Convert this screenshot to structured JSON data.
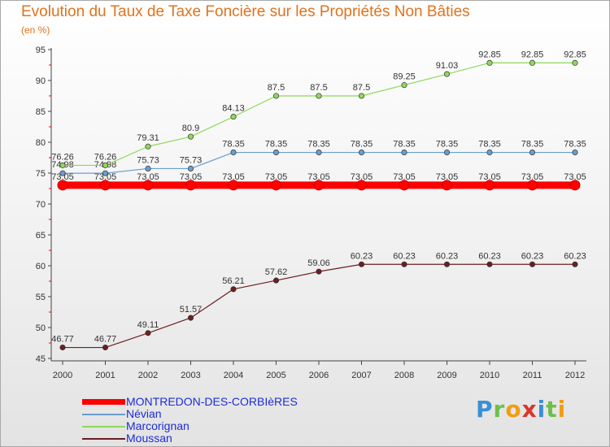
{
  "chart_data": {
    "type": "line",
    "title": "Evolution du Taux de Taxe Foncière sur les Propriétés Non Bâties",
    "ylabel": "(en %)",
    "xlabel": "",
    "ylim": [
      45,
      95
    ],
    "yticks": [
      45,
      50,
      55,
      60,
      65,
      70,
      75,
      80,
      85,
      90,
      95
    ],
    "categories": [
      "2000",
      "2001",
      "2002",
      "2003",
      "2004",
      "2005",
      "2006",
      "2007",
      "2008",
      "2009",
      "2010",
      "2011",
      "2012"
    ],
    "series": [
      {
        "name": "MONTREDON-DES-CORBIèRES",
        "color": "#ff0000",
        "values": [
          73.05,
          73.05,
          73.05,
          73.05,
          73.05,
          73.05,
          73.05,
          73.05,
          73.05,
          73.05,
          73.05,
          73.05,
          73.05
        ],
        "labels": [
          "73.05",
          "73.05",
          "73.05",
          "73.05",
          "73.05",
          "73.05",
          "73.05",
          "73.05",
          "73.05",
          "73.05",
          "73.05",
          "73.05",
          "73.05"
        ]
      },
      {
        "name": "Névian",
        "color": "#6a9ecf",
        "values": [
          74.98,
          74.98,
          75.73,
          75.73,
          78.35,
          78.35,
          78.35,
          78.35,
          78.35,
          78.35,
          78.35,
          78.35,
          78.35
        ],
        "labels": [
          "74.98",
          "74.98",
          "75.73",
          "75.73",
          "78.35",
          "78.35",
          "78.35",
          "78.35",
          "78.35",
          "78.35",
          "78.35",
          "78.35",
          "78.35"
        ]
      },
      {
        "name": "Marcorignan",
        "color": "#8fd85a",
        "values": [
          76.26,
          76.26,
          79.31,
          80.9,
          84.13,
          87.5,
          87.5,
          87.5,
          89.25,
          91.03,
          92.85,
          92.85,
          92.85
        ],
        "labels": [
          "76.26",
          "76.26",
          "79.31",
          "80.9",
          "84.13",
          "87.5",
          "87.5",
          "87.5",
          "89.25",
          "91.03",
          "92.85",
          "92.85",
          "92.85"
        ]
      },
      {
        "name": "Moussan",
        "color": "#6b1f1f",
        "values": [
          46.77,
          46.77,
          49.11,
          51.57,
          56.21,
          57.62,
          59.06,
          60.23,
          60.23,
          60.23,
          60.23,
          60.23,
          60.23
        ],
        "labels": [
          "46.77",
          "46.77",
          "49.11",
          "51.57",
          "56.21",
          "57.62",
          "59.06",
          "60.23",
          "60.23",
          "60.23",
          "60.23",
          "60.23",
          "60.23"
        ]
      }
    ],
    "legend_position": "bottom-left",
    "grid": false
  },
  "brand": {
    "letters": [
      "P",
      "r",
      "o",
      "x",
      "i",
      "t",
      "i"
    ],
    "colors": [
      "#3a8fd6",
      "#6cc04a",
      "#f39c12",
      "#d9362b",
      "#3a8fd6",
      "#6cc04a",
      "#f39c12"
    ]
  }
}
